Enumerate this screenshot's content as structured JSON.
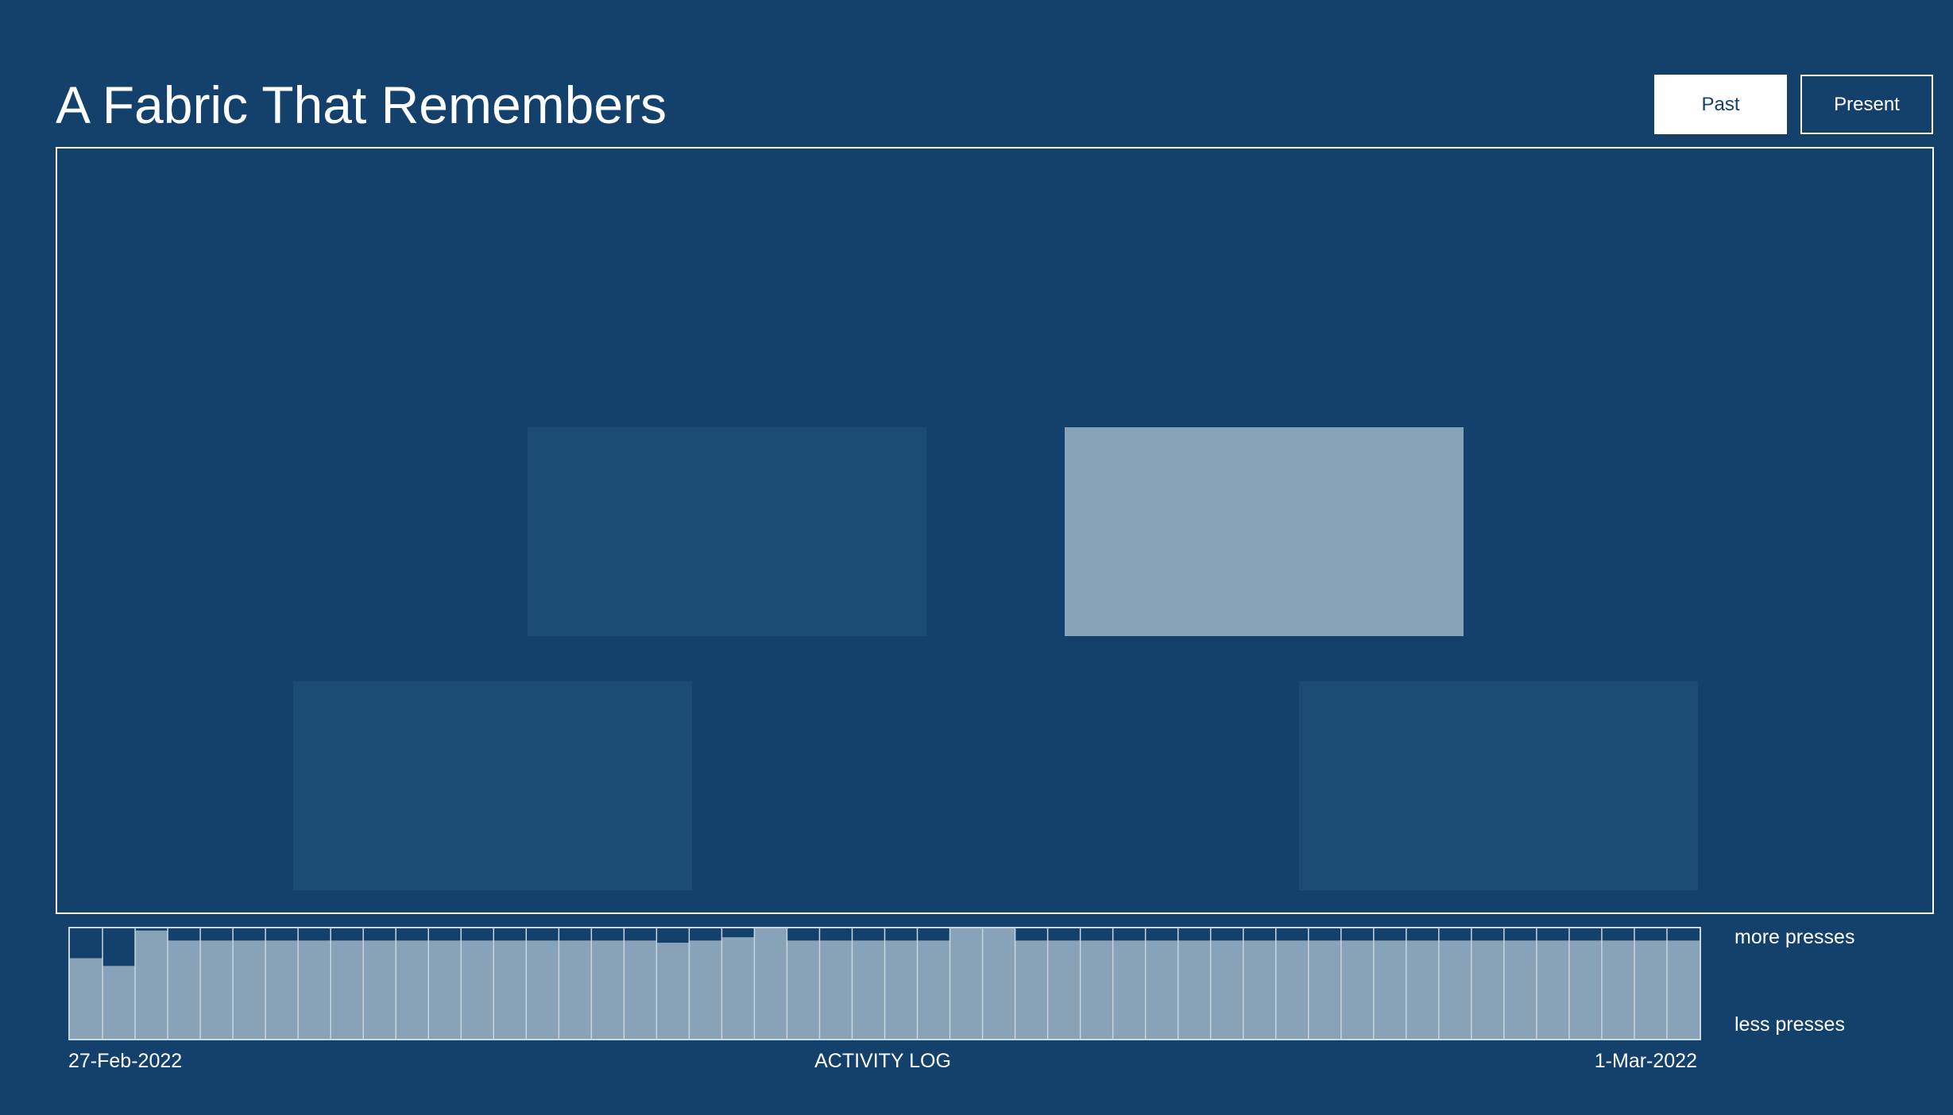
{
  "header": {
    "title": "A Fabric That Remembers"
  },
  "toggle": {
    "past_label": "Past",
    "present_label": "Present",
    "active": "Past"
  },
  "tiles": [
    {
      "state": "dim",
      "color": "#1b4a72"
    },
    {
      "state": "lit",
      "color": "#88a3b7"
    },
    {
      "state": "dim",
      "color": "#1b4a72"
    },
    {
      "state": "dim",
      "color": "#1b4a72"
    }
  ],
  "activity_log": {
    "title": "ACTIVITY LOG",
    "start_date": "27-Feb-2022",
    "end_date": "1-Mar-2022",
    "scale_high": "more presses",
    "scale_low": "less presses",
    "bar_color": "#88a3b7",
    "levels": [
      0.73,
      0.66,
      0.98,
      0.89,
      0.89,
      0.89,
      0.89,
      0.89,
      0.89,
      0.89,
      0.89,
      0.89,
      0.89,
      0.89,
      0.89,
      0.89,
      0.89,
      0.89,
      0.87,
      0.89,
      0.92,
      1.0,
      0.89,
      0.89,
      0.89,
      0.89,
      0.89,
      1.0,
      1.0,
      0.89,
      0.89,
      0.89,
      0.89,
      0.89,
      0.89,
      0.89,
      0.89,
      0.89,
      0.89,
      0.89,
      0.89,
      0.89,
      0.89,
      0.89,
      0.89,
      0.89,
      0.89,
      0.89,
      0.89,
      0.89
    ]
  }
}
